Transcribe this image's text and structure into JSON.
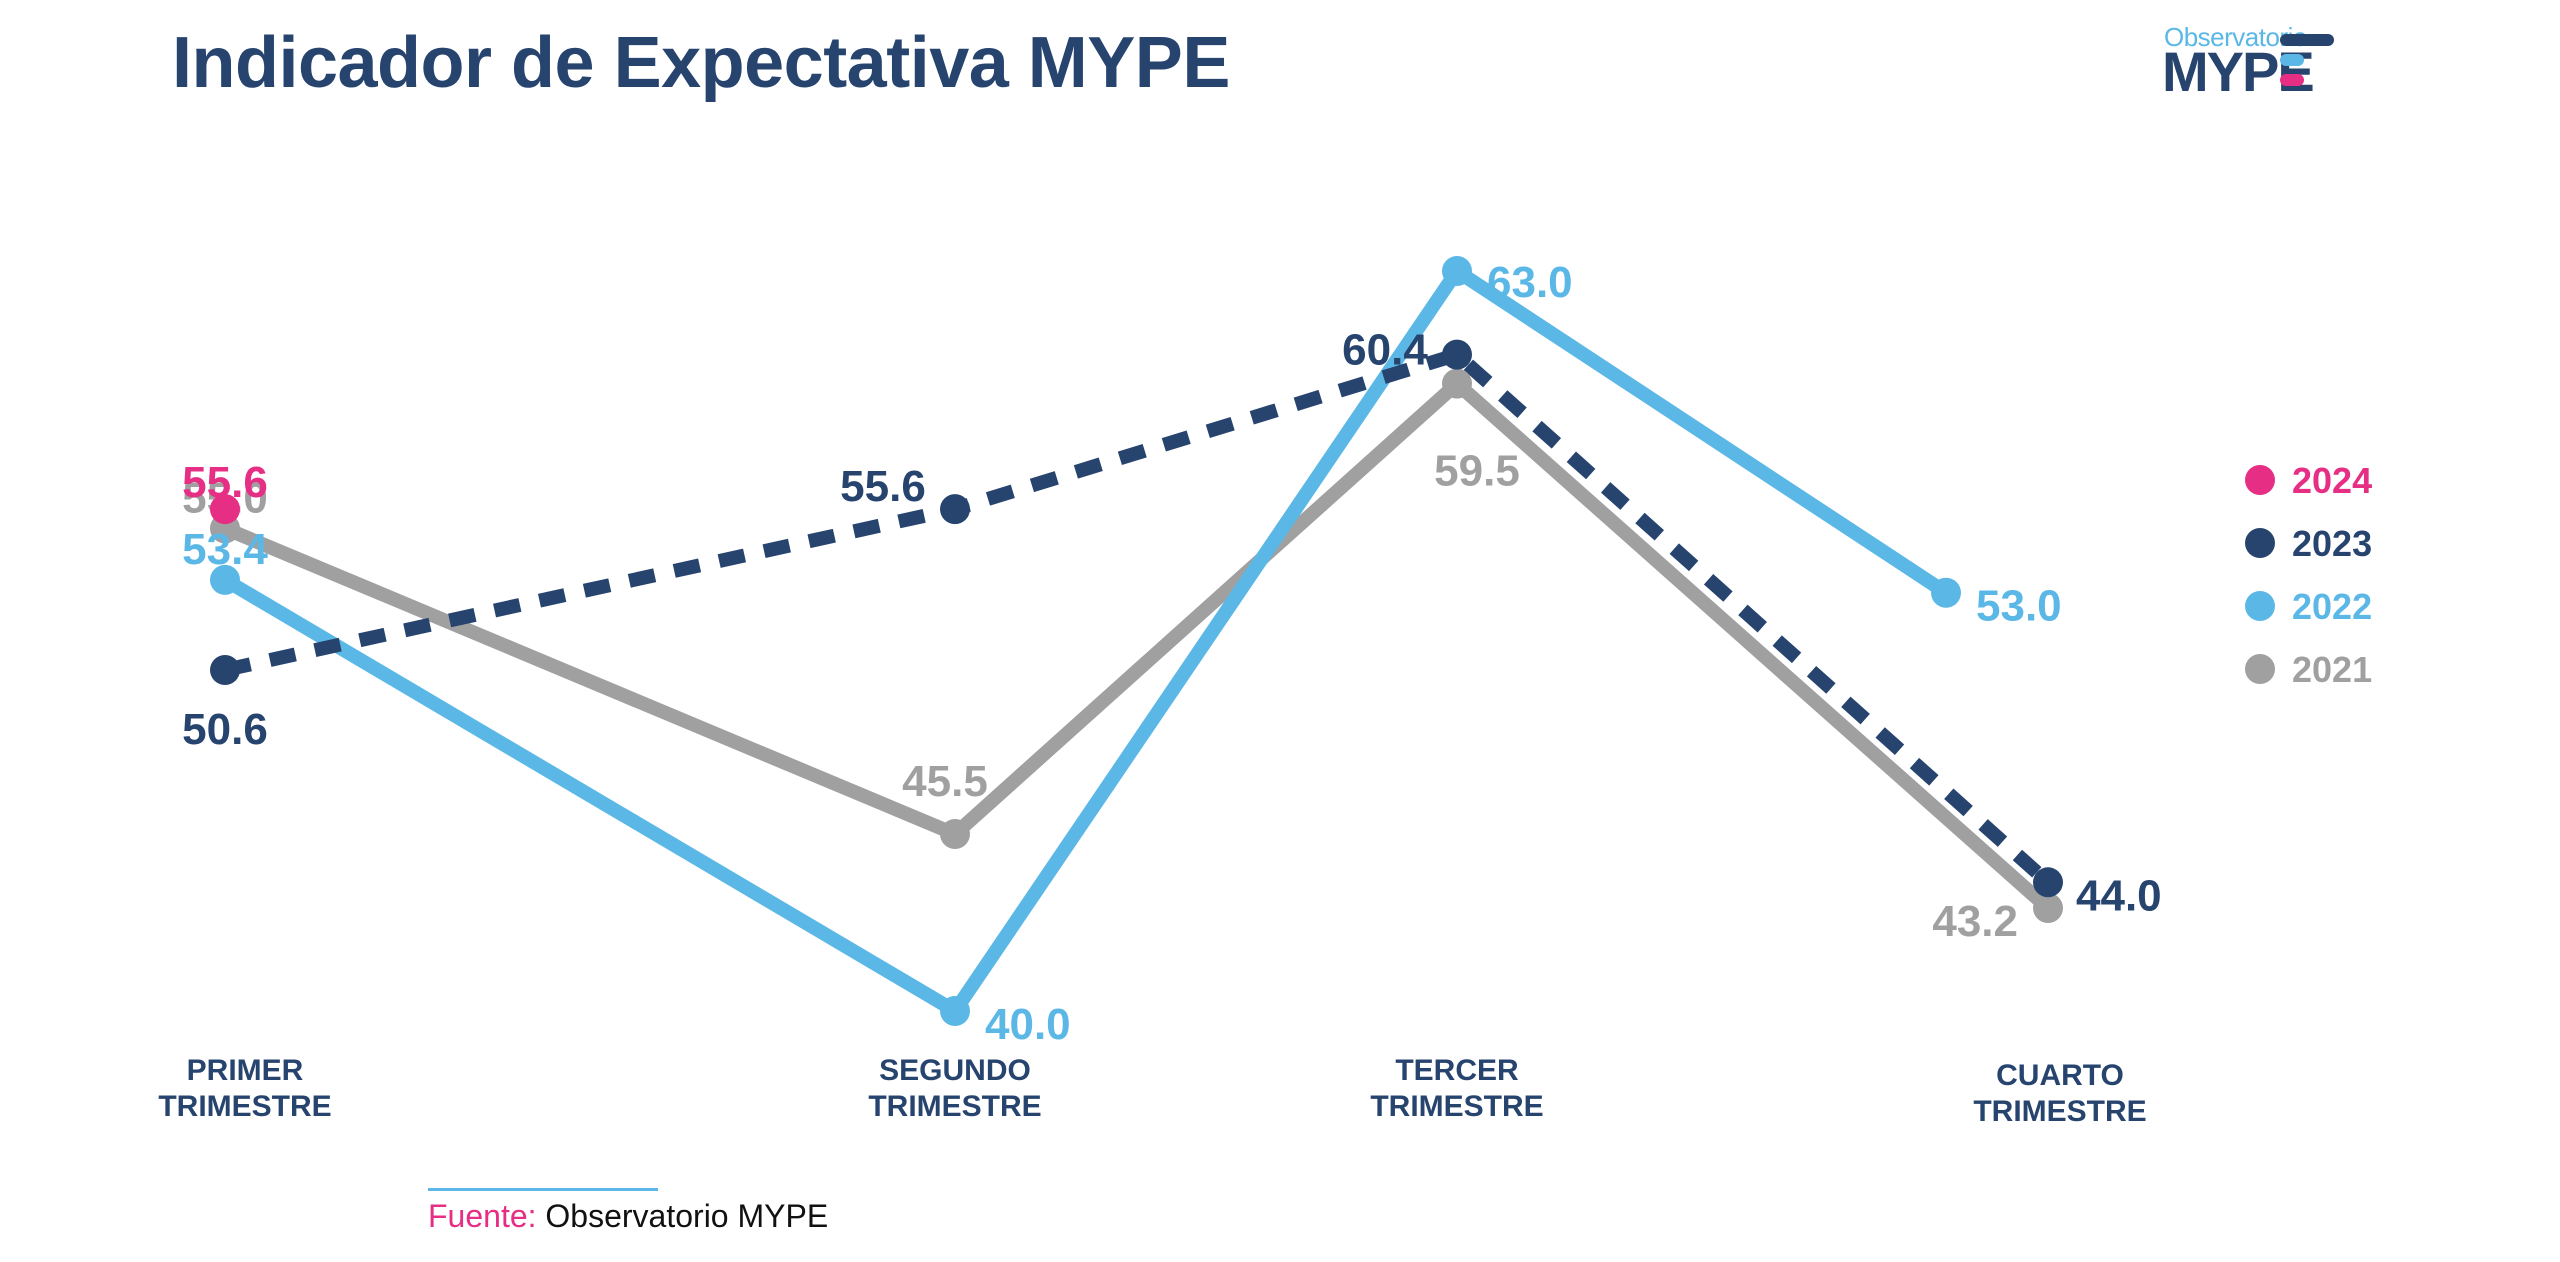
{
  "header": {
    "title": "Indicador de Expectativa MYPE"
  },
  "logo": {
    "line1": "Observatorio",
    "line2": "MYPE"
  },
  "footer": {
    "source_label": "Fuente:",
    "source_value": " Observatorio MYPE"
  },
  "chart_data": {
    "type": "line",
    "title": "Indicador de Expectativa MYPE",
    "xlabel": "",
    "ylabel": "",
    "grid": false,
    "legend_position": "right",
    "categories": [
      "PRIMER TRIMESTRE",
      "SEGUNDO TRIMESTRE",
      "TERCER TRIMESTRE",
      "CUARTO TRIMESTRE"
    ],
    "category_lines": [
      [
        "PRIMER",
        "TRIMESTRE"
      ],
      [
        "SEGUNDO",
        "TRIMESTRE"
      ],
      [
        "TERCER",
        "TRIMESTRE"
      ],
      [
        "CUARTO",
        "TRIMESTRE"
      ]
    ],
    "ylim": [
      38,
      64
    ],
    "series": [
      {
        "name": "2024",
        "color": "#e52e84",
        "dashed": false,
        "values": [
          55.6,
          null,
          null,
          null
        ],
        "labels": [
          "55.6",
          null,
          null,
          null
        ]
      },
      {
        "name": "2023",
        "color": "#27446f",
        "dashed": true,
        "values": [
          50.6,
          55.6,
          60.4,
          44.0
        ],
        "labels": [
          "50.6",
          "55.6",
          "60.4",
          "44.0"
        ]
      },
      {
        "name": "2022",
        "color": "#5bb8e6",
        "dashed": false,
        "values": [
          53.4,
          40.0,
          63.0,
          53.0
        ],
        "labels": [
          "53.4",
          "40.0",
          "63.0",
          "53.0"
        ]
      },
      {
        "name": "2021",
        "color": "#a0a0a0",
        "dashed": false,
        "values": [
          55.0,
          45.5,
          59.5,
          43.2
        ],
        "labels": [
          "55.0",
          "45.5",
          "59.5",
          "43.2"
        ]
      }
    ]
  }
}
